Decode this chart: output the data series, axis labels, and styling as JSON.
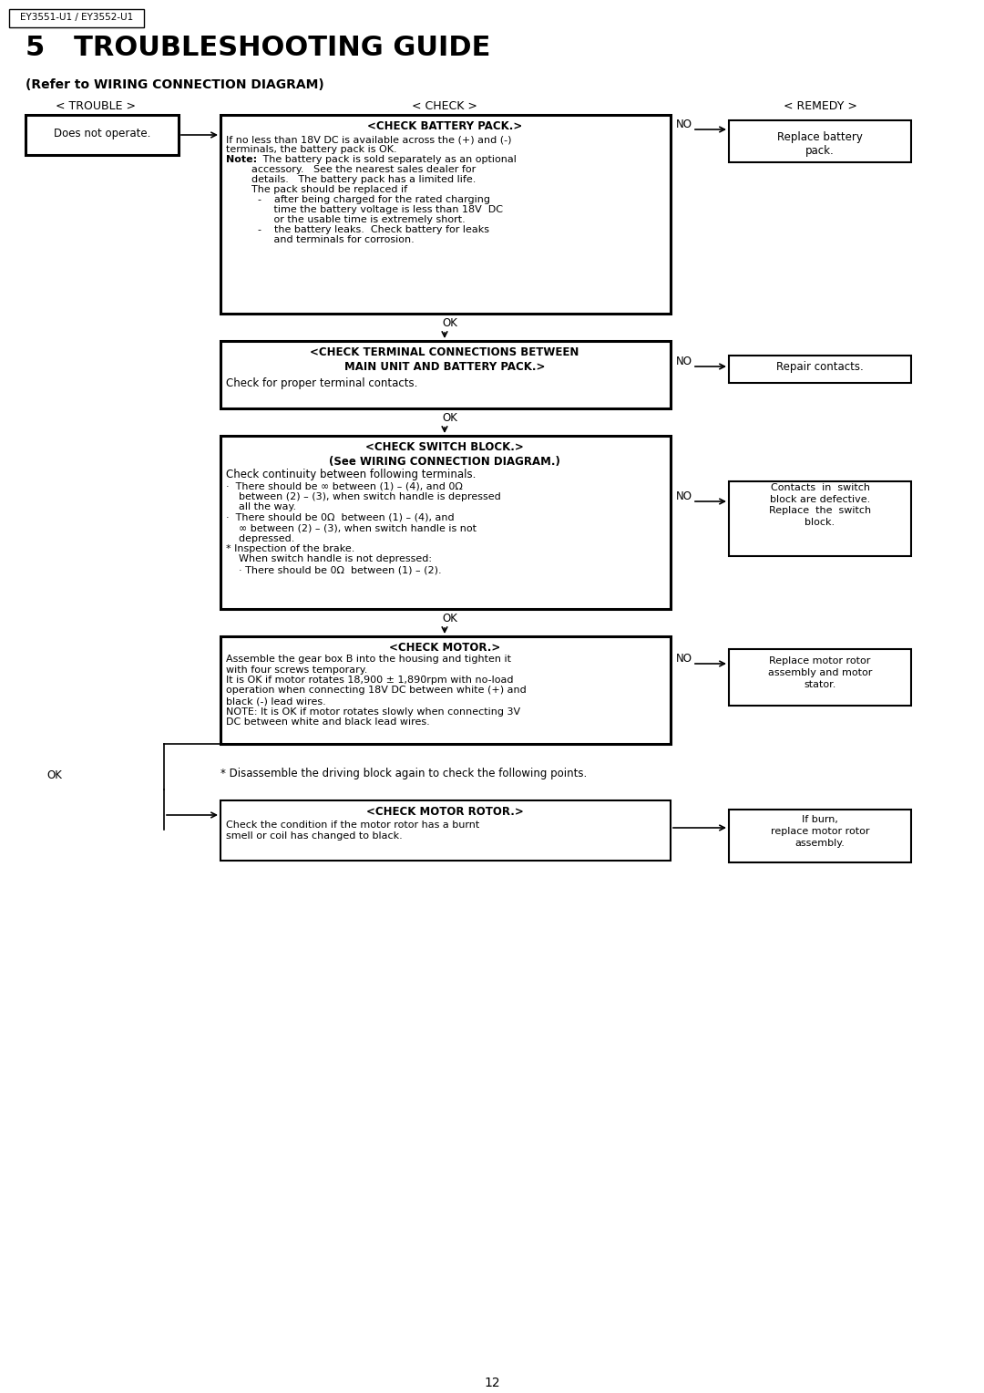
{
  "bg_color": "#ffffff",
  "page_number": "12",
  "model_label": "EY3551-U1 / EY3552-U1",
  "title": "5   TROUBLESHOOTING GUIDE",
  "subtitle": "(Refer to WIRING CONNECTION DIAGRAM)",
  "col_trouble": "< TROUBLE >",
  "col_check": "< CHECK >",
  "col_remedy": "< REMEDY >",
  "trouble_box_text": "Does not operate.",
  "check1_title": "<CHECK BATTERY PACK.>",
  "check1_line1": "If no less than 18V DC is available across the (+) and (-)",
  "check1_line2": "terminals, the battery pack is OK.",
  "check1_note_label": "Note:",
  "check1_note_text": "   The battery pack is sold separately as an optional",
  "check1_note_lines": [
    "        accessory.   See the nearest sales dealer for",
    "        details.   The battery pack has a limited life.",
    "        The pack should be replaced if",
    "          -    after being charged for the rated charging",
    "               time the battery voltage is less than 18V  DC",
    "               or the usable time is extremely short.",
    "          -    the battery leaks.  Check battery for leaks",
    "               and terminals for corrosion."
  ],
  "remedy1_text": "Replace battery\npack.",
  "check2_title": "<CHECK TERMINAL CONNECTIONS BETWEEN\nMAIN UNIT AND BATTERY PACK.>",
  "check2_body": "Check for proper terminal contacts.",
  "remedy2_text": "Repair contacts.",
  "check3_title": "<CHECK SWITCH BLOCK.>\n(See WIRING CONNECTION DIAGRAM.)",
  "check3_body": "Check continuity between following terminals.",
  "check3_bullets": [
    "·  There should be ∞ between (1) – (4), and 0Ω",
    "    between (2) – (3), when switch handle is depressed",
    "    all the way.",
    "·  There should be 0Ω  between (1) – (4), and",
    "    ∞ between (2) – (3), when switch handle is not",
    "    depressed.",
    "* Inspection of the brake.",
    "    When switch handle is not depressed:",
    "    · There should be 0Ω  between (1) – (2)."
  ],
  "remedy3_text": "Contacts  in  switch\nblock are defective.\nReplace  the  switch\nblock.",
  "check4_title": "<CHECK MOTOR.>",
  "check4_bullets": [
    "Assemble the gear box B into the housing and tighten it",
    "with four screws temporary.",
    "It is OK if motor rotates 18,900 ± 1,890rpm with no-load",
    "operation when connecting 18V DC between white (+) and",
    "black (-) lead wires.",
    "NOTE: It is OK if motor rotates slowly when connecting 3V",
    "DC between white and black lead wires."
  ],
  "remedy4_text": "Replace motor rotor\nassembly and motor\nstator.",
  "disassemble_text": "* Disassemble the driving block again to check the following points.",
  "check5_title": "<CHECK MOTOR ROTOR.>",
  "check5_body1": "Check the condition if the motor rotor has a burnt",
  "check5_body2": "smell or coil has changed to black.",
  "remedy5_text": "If burn,\nreplace motor rotor\nassembly."
}
